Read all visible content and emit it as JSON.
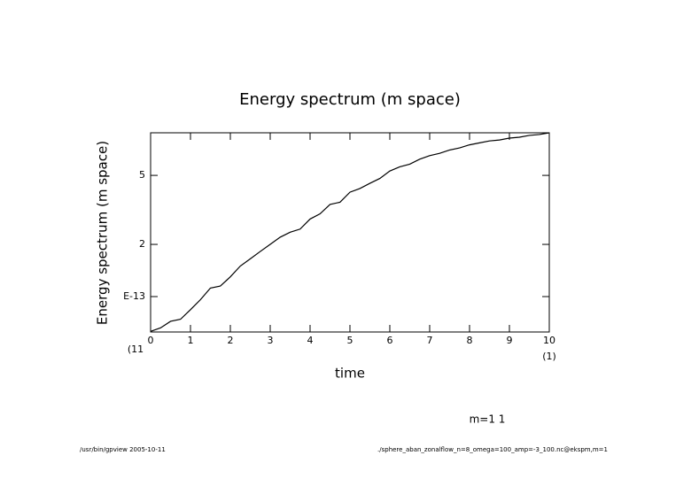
{
  "chart_data": {
    "type": "line",
    "title": "Energy spectrum (m space)",
    "y_label": "Energy spectrum (m space)",
    "x_label": "time",
    "x_unit_label": "(1)",
    "y_unit_label": "(11",
    "annotation": "m=1 1",
    "footer_left": "/usr/bin/gpview  2005-10-11",
    "footer_right": "./sphere_aban_zonalflow_n=8_omega=100_amp=-3_100.nc@ekspm,m=1",
    "x": [
      0,
      0.25,
      0.5,
      0.75,
      1,
      1.25,
      1.5,
      1.75,
      2,
      2.25,
      2.5,
      2.75,
      3,
      3.25,
      3.5,
      3.75,
      4,
      4.25,
      4.5,
      4.75,
      5,
      5.25,
      5.5,
      5.75,
      6,
      6.25,
      6.5,
      6.75,
      7,
      7.25,
      7.5,
      7.75,
      8,
      8.25,
      8.5,
      8.75,
      9,
      9.25,
      9.5,
      9.75,
      10
    ],
    "series": [
      {
        "color": "#000000",
        "values": [
          0.63,
          0.66,
          0.72,
          0.74,
          0.84,
          0.96,
          1.12,
          1.15,
          1.3,
          1.5,
          1.65,
          1.82,
          2.0,
          2.2,
          2.35,
          2.45,
          2.8,
          3.0,
          3.4,
          3.5,
          4.0,
          4.2,
          4.5,
          4.8,
          5.3,
          5.6,
          5.8,
          6.2,
          6.5,
          6.7,
          7.0,
          7.2,
          7.5,
          7.7,
          7.9,
          8.0,
          8.2,
          8.3,
          8.5,
          8.6,
          8.8
        ]
      }
    ],
    "xlim": [
      0,
      10
    ],
    "xticks": [
      0,
      1,
      2,
      3,
      4,
      5,
      6,
      7,
      8,
      9,
      10
    ],
    "ylim": [
      0.625,
      8.8
    ],
    "yticks": [
      {
        "value": 1,
        "label": "E-13"
      },
      2,
      5
    ],
    "ylog": true
  }
}
